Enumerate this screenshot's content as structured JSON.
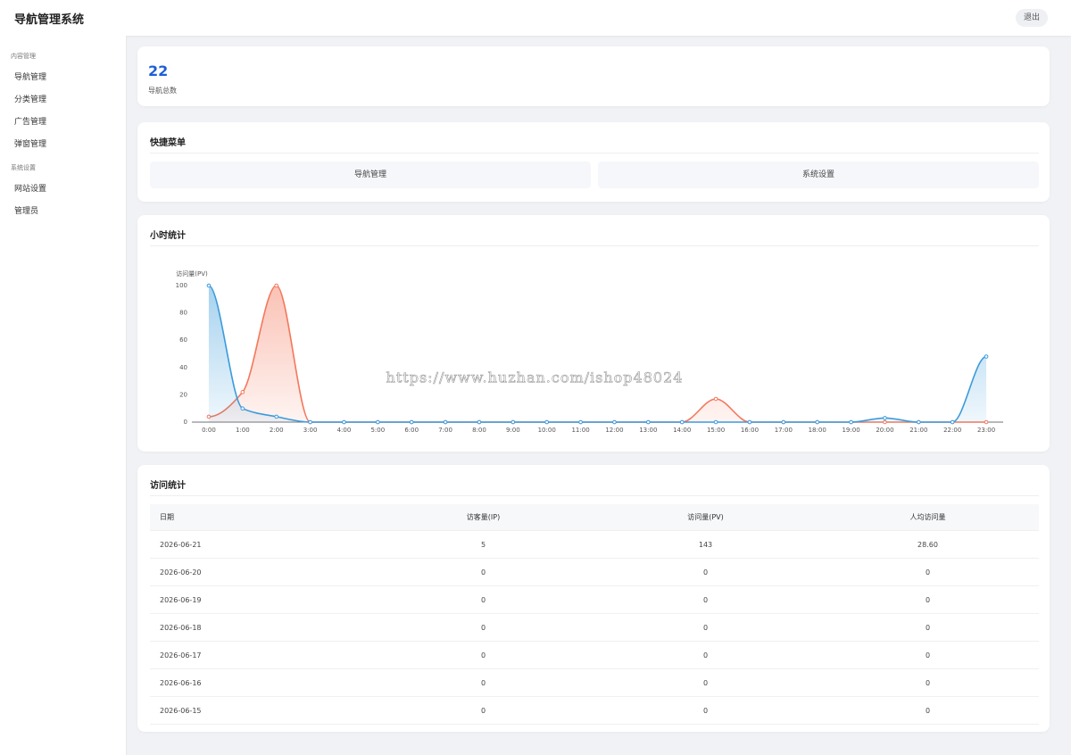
{
  "header": {
    "title": "导航管理系统",
    "logout": "退出"
  },
  "sidebar": [
    {
      "group": "内容管理",
      "items": [
        "导航管理",
        "分类管理",
        "广告管理",
        "弹窗管理"
      ]
    },
    {
      "group": "系统设置",
      "items": [
        "网站设置",
        "管理员"
      ]
    }
  ],
  "stats": {
    "value": "22",
    "label": "导航总数"
  },
  "quick_menu": {
    "title": "快捷菜单",
    "buttons": [
      "导航管理",
      "系统设置"
    ]
  },
  "chart_card": {
    "title": "小时统计",
    "watermark": "https://www.huzhan.com/ishop48024"
  },
  "chart_data": {
    "type": "line",
    "ylabel": "访问量(PV)",
    "categories": [
      "0:00",
      "1:00",
      "2:00",
      "3:00",
      "4:00",
      "5:00",
      "6:00",
      "7:00",
      "8:00",
      "9:00",
      "10:00",
      "11:00",
      "12:00",
      "13:00",
      "14:00",
      "15:00",
      "16:00",
      "17:00",
      "18:00",
      "19:00",
      "20:00",
      "21:00",
      "22:00",
      "23:00"
    ],
    "series": [
      {
        "color": "#f4775a",
        "values": [
          4,
          22,
          100,
          0,
          0,
          0,
          0,
          0,
          0,
          0,
          0,
          0,
          0,
          0,
          0,
          17,
          0,
          0,
          0,
          0,
          0,
          0,
          0,
          0
        ]
      },
      {
        "color": "#3a9bdc",
        "values": [
          100,
          10,
          4,
          0,
          0,
          0,
          0,
          0,
          0,
          0,
          0,
          0,
          0,
          0,
          0,
          0,
          0,
          0,
          0,
          0,
          3,
          0,
          0,
          48
        ]
      }
    ],
    "ylim": [
      0,
      100
    ],
    "yticks": [
      0,
      20,
      40,
      60,
      80,
      100
    ],
    "grid": false,
    "smooth": true,
    "area": true
  },
  "table": {
    "title": "访问统计",
    "columns": [
      "日期",
      "访客量(IP)",
      "访问量(PV)",
      "人均访问量"
    ],
    "rows": [
      [
        "2026-06-21",
        "5",
        "143",
        "28.60"
      ],
      [
        "2026-06-20",
        "0",
        "0",
        "0"
      ],
      [
        "2026-06-19",
        "0",
        "0",
        "0"
      ],
      [
        "2026-06-18",
        "0",
        "0",
        "0"
      ],
      [
        "2026-06-17",
        "0",
        "0",
        "0"
      ],
      [
        "2026-06-16",
        "0",
        "0",
        "0"
      ],
      [
        "2026-06-15",
        "0",
        "0",
        "0"
      ]
    ]
  }
}
